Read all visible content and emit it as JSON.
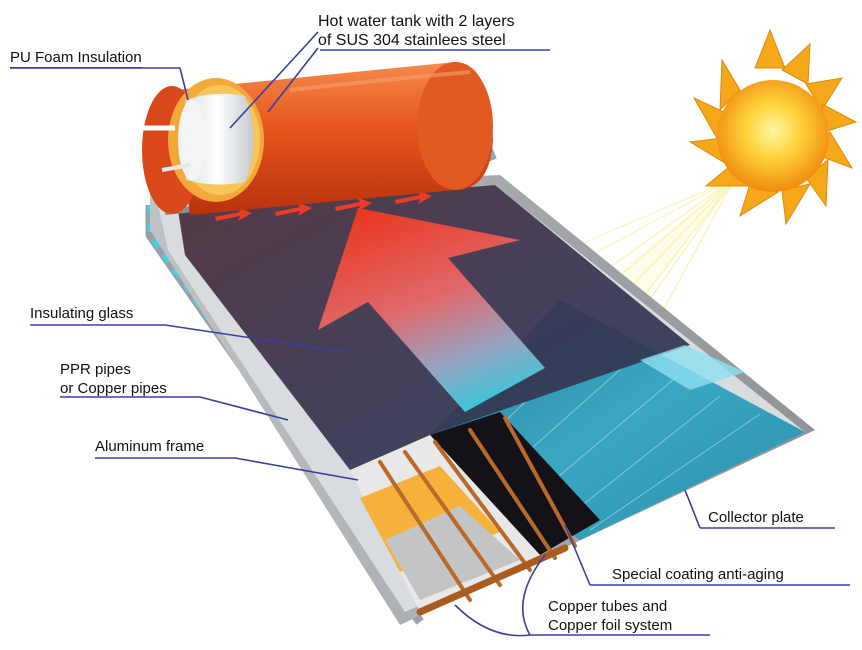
{
  "labels": {
    "pu_foam": "PU Foam Insulation",
    "tank_line1": "Hot water tank with 2 layers",
    "tank_line2": "of SUS 304 stainlees steel",
    "glass": "Insulating glass",
    "pipes_line1": "PPR pipes",
    "pipes_line2": "or Copper pipes",
    "frame": "Aluminum frame",
    "collector": "Collector plate",
    "coating": "Special coating anti-aging",
    "copper_line1": "Copper tubes and",
    "copper_line2": "Copper foil system"
  },
  "colors": {
    "tank_orange": "#e5531c",
    "insulation": "#f0a030",
    "glass_dark": "#3a3048",
    "collector_teal": "#3aa7c2",
    "arrow_red": "#ef3b24",
    "arrow_cyan": "#35d0e0",
    "sun": "#f7b21e",
    "leader_line": "#3a3fa0"
  },
  "icons": {
    "sun": "sun-icon",
    "heat_arrow": "heat-flow-arrow-icon"
  }
}
